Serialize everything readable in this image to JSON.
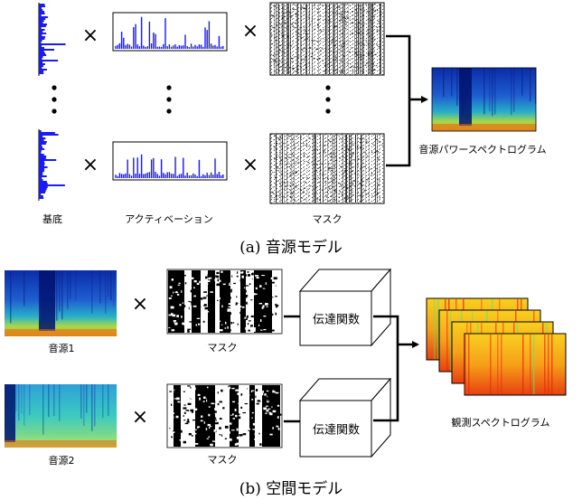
{
  "section_a": {
    "caption": "(a) 音源モデル",
    "basis_label": "基底",
    "activation_label": "アクティベーション",
    "mask_label": "マスク",
    "output_label": "音源パワースペクトログラム",
    "times_symbol": "×"
  },
  "section_b": {
    "caption": "(b) 空間モデル",
    "source1_label": "音源1",
    "source2_label": "音源2",
    "mask_label": "マスク",
    "transfer_label": "伝達関数",
    "output_label": "観測スペクトログラム",
    "times_symbol": "×"
  },
  "colors": {
    "stem_blue": "#1a1aff",
    "spectrogram_dark": "#00188c",
    "spectrogram_warm": "#f04010"
  },
  "icons": [
    "vertical-ellipsis-icon",
    "arrow-right-icon"
  ]
}
